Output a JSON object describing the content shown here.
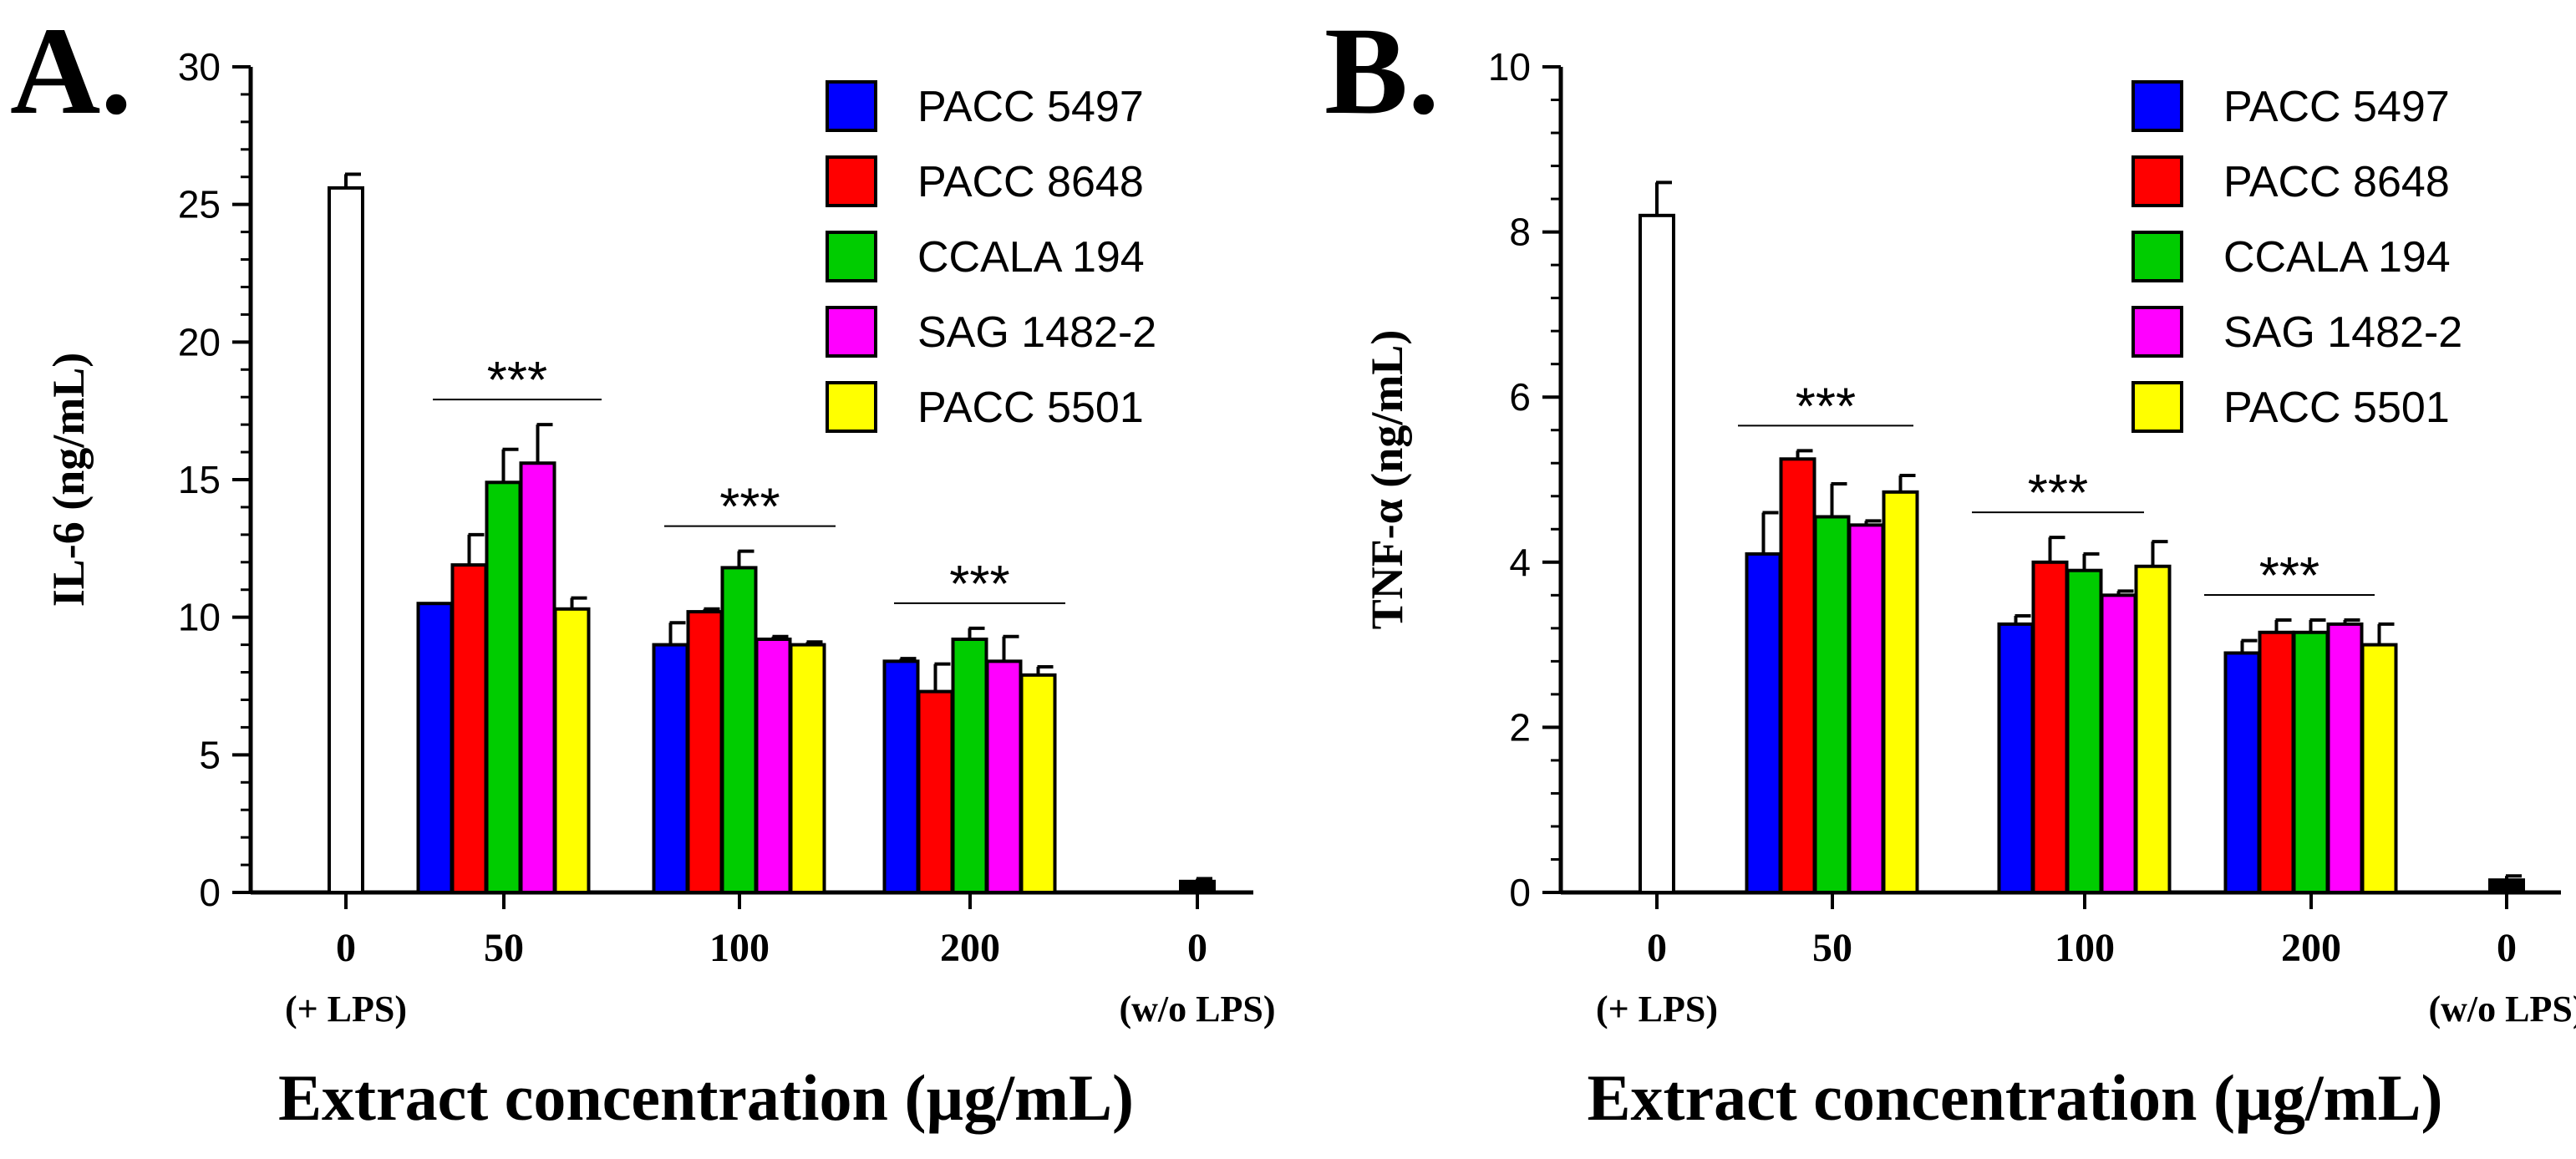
{
  "colors": {
    "PACC 5497": "#0000ff",
    "PACC 8648": "#ff0000",
    "CCALA 194": "#00cc00",
    "SAG 1482-2": "#ff00ff",
    "PACC 5501": "#ffff00",
    "control_lps": "#ffffff",
    "control_no_lps": "#000000"
  },
  "chart_data": [
    {
      "panel": "A.",
      "type": "bar",
      "title": "",
      "ylabel": "IL-6 (ng/mL)",
      "xlabel": "Extract concentration (µg/mL)",
      "ylim": [
        0,
        30
      ],
      "yticks": [
        "0",
        "5",
        "10",
        "15",
        "20",
        "25",
        "30"
      ],
      "significance": "***",
      "groups": [
        {
          "label": "0",
          "sublabel": "(+ LPS)",
          "kind": "control-lps",
          "value": 25.6,
          "error": 0.5
        },
        {
          "label": "50",
          "kind": "strains",
          "values": [
            10.5,
            11.9,
            14.9,
            15.6,
            10.3
          ],
          "errors": [
            0.0,
            1.1,
            1.2,
            1.4,
            0.4
          ]
        },
        {
          "label": "100",
          "kind": "strains",
          "values": [
            9.0,
            10.2,
            11.8,
            9.2,
            9.0
          ],
          "errors": [
            0.8,
            0.1,
            0.6,
            0.1,
            0.1
          ]
        },
        {
          "label": "200",
          "kind": "strains",
          "values": [
            8.4,
            7.3,
            9.2,
            8.4,
            7.9
          ],
          "errors": [
            0.1,
            1.0,
            0.4,
            0.9,
            0.3
          ]
        },
        {
          "label": "0",
          "sublabel": "(w/o LPS)",
          "kind": "control-no-lps",
          "value": 0.4,
          "error": 0.1
        }
      ],
      "legend": [
        "PACC 5497",
        "PACC 8648",
        "CCALA 194",
        "SAG 1482-2",
        "PACC 5501"
      ]
    },
    {
      "panel": "B.",
      "type": "bar",
      "title": "",
      "ylabel": "TNF-α (ng/mL)",
      "xlabel": "Extract concentration (µg/mL)",
      "ylim": [
        0,
        10
      ],
      "yticks": [
        "0",
        "2",
        "4",
        "6",
        "8",
        "10"
      ],
      "significance": "***",
      "groups": [
        {
          "label": "0",
          "sublabel": "(+ LPS)",
          "kind": "control-lps",
          "value": 8.2,
          "error": 0.4
        },
        {
          "label": "50",
          "kind": "strains",
          "values": [
            4.1,
            5.25,
            4.55,
            4.45,
            4.85
          ],
          "errors": [
            0.5,
            0.1,
            0.4,
            0.05,
            0.2
          ]
        },
        {
          "label": "100",
          "kind": "strains",
          "values": [
            3.25,
            4.0,
            3.9,
            3.6,
            3.95
          ],
          "errors": [
            0.1,
            0.3,
            0.2,
            0.05,
            0.3
          ]
        },
        {
          "label": "200",
          "kind": "strains",
          "values": [
            2.9,
            3.15,
            3.15,
            3.25,
            3.0
          ],
          "errors": [
            0.15,
            0.15,
            0.15,
            0.05,
            0.25
          ]
        },
        {
          "label": "0",
          "sublabel": "(w/o LPS)",
          "kind": "control-no-lps",
          "value": 0.15,
          "error": 0.05
        }
      ],
      "legend": [
        "PACC 5497",
        "PACC 8648",
        "CCALA 194",
        "SAG 1482-2",
        "PACC 5501"
      ]
    }
  ]
}
